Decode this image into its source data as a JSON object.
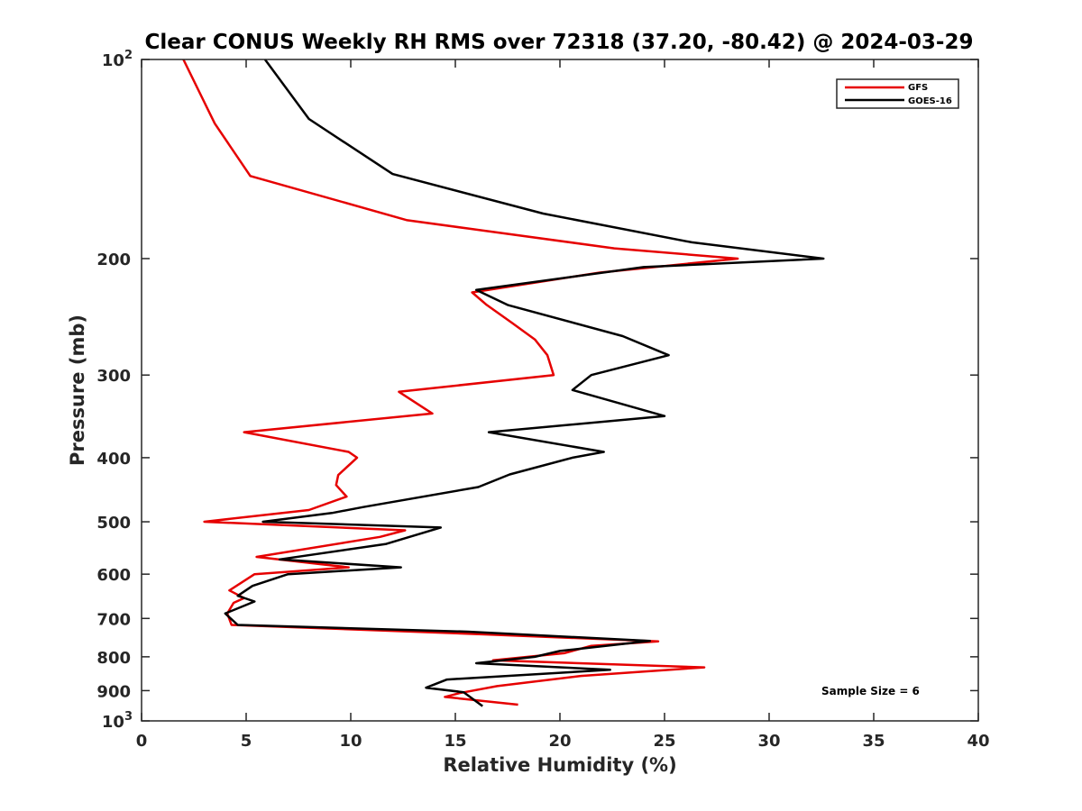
{
  "chart_data": {
    "type": "line",
    "title": "Clear CONUS Weekly RH RMS over 72318 (37.20, -80.42) @ 2024-03-29",
    "xlabel": "Relative Humidity (%)",
    "ylabel": "Pressure (mb)",
    "xlim": [
      0,
      40
    ],
    "ylim": [
      100,
      1000
    ],
    "yscale": "log",
    "y_reversed": true,
    "grid": false,
    "legend_position": "top-right",
    "x_ticks": [
      "0",
      "5",
      "10",
      "15",
      "20",
      "25",
      "30",
      "35",
      "40"
    ],
    "x_tick_values": [
      0,
      5,
      10,
      15,
      20,
      25,
      30,
      35,
      40
    ],
    "y_ticks": [
      {
        "value": 100,
        "base": "10",
        "exp": "2"
      },
      {
        "value": 200,
        "label": "200"
      },
      {
        "value": 300,
        "label": "300"
      },
      {
        "value": 400,
        "label": "400"
      },
      {
        "value": 500,
        "label": "500"
      },
      {
        "value": 600,
        "label": "600"
      },
      {
        "value": 700,
        "label": "700"
      },
      {
        "value": 800,
        "label": "800"
      },
      {
        "value": 900,
        "label": "900"
      },
      {
        "value": 1000,
        "base": "10",
        "exp": "3"
      }
    ],
    "series": [
      {
        "name": "GFS",
        "color": "#e60000",
        "points": [
          [
            2.0,
            100
          ],
          [
            3.5,
            125
          ],
          [
            5.2,
            150
          ],
          [
            12.7,
            175
          ],
          [
            22.6,
            193
          ],
          [
            28.5,
            200
          ],
          [
            21.9,
            210
          ],
          [
            15.8,
            225
          ],
          [
            16.5,
            235
          ],
          [
            17.7,
            250
          ],
          [
            18.8,
            265
          ],
          [
            19.4,
            280
          ],
          [
            19.7,
            300
          ],
          [
            12.3,
            318
          ],
          [
            13.9,
            343
          ],
          [
            4.9,
            366
          ],
          [
            9.9,
            392
          ],
          [
            10.3,
            400
          ],
          [
            9.4,
            425
          ],
          [
            9.3,
            440
          ],
          [
            9.8,
            458
          ],
          [
            8.0,
            480
          ],
          [
            3.0,
            500
          ],
          [
            12.6,
            515
          ],
          [
            11.4,
            527
          ],
          [
            5.5,
            565
          ],
          [
            9.9,
            586
          ],
          [
            5.4,
            600
          ],
          [
            4.2,
            635
          ],
          [
            4.9,
            652
          ],
          [
            4.4,
            663
          ],
          [
            4.1,
            688
          ],
          [
            4.3,
            716
          ],
          [
            16.4,
            740
          ],
          [
            24.7,
            758
          ],
          [
            21.5,
            770
          ],
          [
            20.2,
            790
          ],
          [
            16.8,
            810
          ],
          [
            26.9,
            830
          ],
          [
            21.0,
            855
          ],
          [
            17.0,
            886
          ],
          [
            15.2,
            908
          ],
          [
            14.5,
            920
          ],
          [
            18.0,
            945
          ]
        ]
      },
      {
        "name": "GOES-16",
        "color": "#000000",
        "points": [
          [
            5.9,
            100
          ],
          [
            8.0,
            123
          ],
          [
            12.0,
            149
          ],
          [
            19.2,
            171
          ],
          [
            26.3,
            189
          ],
          [
            32.6,
            200
          ],
          [
            24.0,
            206
          ],
          [
            16.0,
            223
          ],
          [
            17.5,
            235
          ],
          [
            23.0,
            262
          ],
          [
            25.2,
            280
          ],
          [
            21.5,
            300
          ],
          [
            20.6,
            316
          ],
          [
            25.0,
            346
          ],
          [
            16.6,
            366
          ],
          [
            22.1,
            392
          ],
          [
            20.6,
            400
          ],
          [
            17.6,
            424
          ],
          [
            16.1,
            443
          ],
          [
            10.6,
            475
          ],
          [
            9.1,
            485
          ],
          [
            5.8,
            500
          ],
          [
            14.3,
            510
          ],
          [
            11.7,
            540
          ],
          [
            6.6,
            570
          ],
          [
            12.4,
            586
          ],
          [
            7.0,
            600
          ],
          [
            5.3,
            625
          ],
          [
            4.6,
            647
          ],
          [
            5.4,
            660
          ],
          [
            4.0,
            688
          ],
          [
            4.6,
            716
          ],
          [
            15.6,
            733
          ],
          [
            24.3,
            757
          ],
          [
            20.0,
            784
          ],
          [
            18.8,
            800
          ],
          [
            16.0,
            818
          ],
          [
            22.4,
            837
          ],
          [
            14.6,
            866
          ],
          [
            13.6,
            891
          ],
          [
            15.4,
            905
          ],
          [
            16.3,
            950
          ]
        ]
      }
    ],
    "annotation": "Sample Size = 6"
  }
}
